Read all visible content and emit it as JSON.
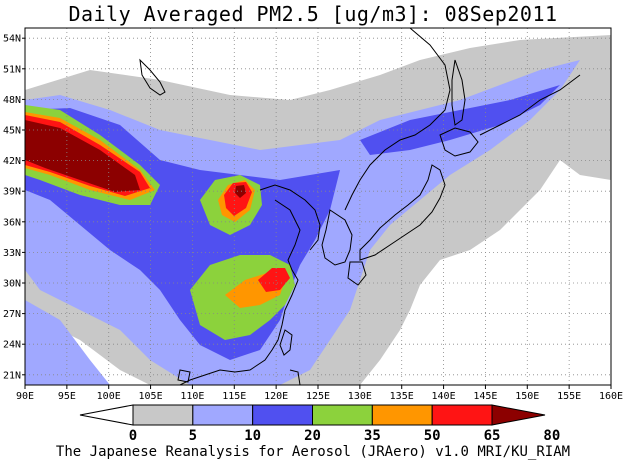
{
  "title": "Daily Averaged PM2.5 [ug/m3]: 08Sep2011",
  "credit": "The Japanese Reanalysis for Aerosol (JRAero) v1.0 MRI/KU_RIAM",
  "map": {
    "lon_range": [
      90,
      160
    ],
    "lat_range": [
      20,
      55
    ],
    "lon_ticks": [
      "90E",
      "95E",
      "100E",
      "105E",
      "110E",
      "115E",
      "120E",
      "125E",
      "130E",
      "135E",
      "140E",
      "145E",
      "150E",
      "155E",
      "160E"
    ],
    "lat_ticks": [
      "21N",
      "24N",
      "27N",
      "30N",
      "33N",
      "36N",
      "39N",
      "42N",
      "45N",
      "48N",
      "51N",
      "54N"
    ],
    "grid": "dotted",
    "background_class_color": "#ffffff"
  },
  "colorbar": {
    "labels": [
      "0",
      "5",
      "10",
      "20",
      "35",
      "50",
      "65",
      "80"
    ],
    "colors": [
      "#ffffff",
      "#c8c8c8",
      "#a0a8ff",
      "#5050f0",
      "#8cd23c",
      "#ff9600",
      "#ff1414",
      "#8c0000"
    ]
  },
  "regions": {
    "gray_band": "#c8c8c8",
    "light_blue": "#a0a8ff",
    "blue": "#5050f0",
    "green": "#8cd23c",
    "orange": "#ff9600",
    "red": "#ff1414",
    "dark_red": "#8c0000"
  }
}
